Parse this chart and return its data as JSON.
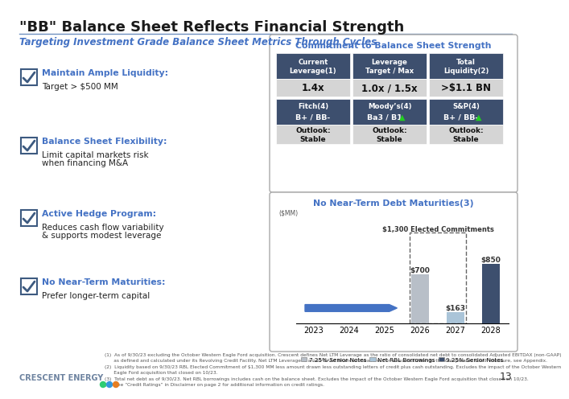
{
  "title": "\"BB\" Balance Sheet Reflects Financial Strength",
  "subtitle": "Targeting Investment Grade Balance Sheet Metrics Through Cycles",
  "dark_blue": "#3d4f6e",
  "bullet_blue": "#4472c4",
  "left_items": [
    {
      "header": "Maintain Ample Liquidity:",
      "body": "Target > $500 MM"
    },
    {
      "header": "Balance Sheet Flexibility:",
      "body": "Limit capital markets risk\nwhen financing M&A"
    },
    {
      "header": "Active Hedge Program:",
      "body": "Reduces cash flow variability\n& supports modest leverage"
    },
    {
      "header": "No Near-Term Maturities:",
      "body": "Prefer longer-term capital"
    }
  ],
  "commitment_title": "Commitment to Balance Sheet Strength",
  "top_cells": [
    {
      "label": "Current\nLeverage(1)",
      "value": "1.4x"
    },
    {
      "label": "Leverage\nTarget / Max",
      "value": "1.0x / 1.5x"
    },
    {
      "label": "Total\nLiquidity(2)",
      "value": ">$1.1 BN"
    }
  ],
  "bottom_cells": [
    {
      "agency": "Fitch(4)",
      "rating": "B+ / BB-",
      "arrow": false
    },
    {
      "agency": "Moody’s(4)",
      "rating": "Ba3 / B1",
      "arrow": true
    },
    {
      "agency": "S&P(4)",
      "rating": "B+ / BB-",
      "arrow": true
    }
  ],
  "bar_title": "No Near-Term Debt Maturities(3)",
  "bar_ylabel": "($MM)",
  "bar_years": [
    "2023",
    "2024",
    "2025",
    "2026",
    "2027",
    "2028"
  ],
  "rbl_vals": [
    0,
    0,
    0,
    700,
    0,
    0
  ],
  "rbl_light_vals": [
    0,
    0,
    0,
    0,
    163,
    0
  ],
  "s925_vals": [
    0,
    0,
    0,
    0,
    0,
    850
  ],
  "rbl_color": "#b8bfc8",
  "rbl_light_color": "#aac4d8",
  "senior925_color": "#3d4f6e",
  "arrow_color": "#4472c4",
  "footnotes": [
    "(1)  As of 9/30/23 excluding the October Western Eagle Ford acquisition. Crescent defines Net LTM Leverage as the ratio of consolidated net debt to consolidated Adjusted EBITDAX (non-GAAP)",
    "      as defined and calculated under its Revolving Credit Facility. Net LTM Leverage is a non-GAAP financial measure. For a reconciliation to the comparable GAAP measure, see Appendix.",
    "(2)  Liquidity based on 9/30/23 RBL Elected Commitment of $1,300 MM less amount drawn less outstanding letters of credit plus cash outstanding. Excludes the impact of the October Western",
    "      Eagle Ford acquisition that closed on 10/23.",
    "(3)  Total net debt as of 9/30/23. Net RBL borrowings includes cash on the balance sheet. Excludes the impact of the October Western Eagle Ford acquisition that closed on 10/23.",
    "(4)  See “Credit Ratings” in Disclaimer on page 2 for additional information on credit ratings."
  ],
  "footer_text": "CRESCENT ENERGY",
  "page_num": "13"
}
